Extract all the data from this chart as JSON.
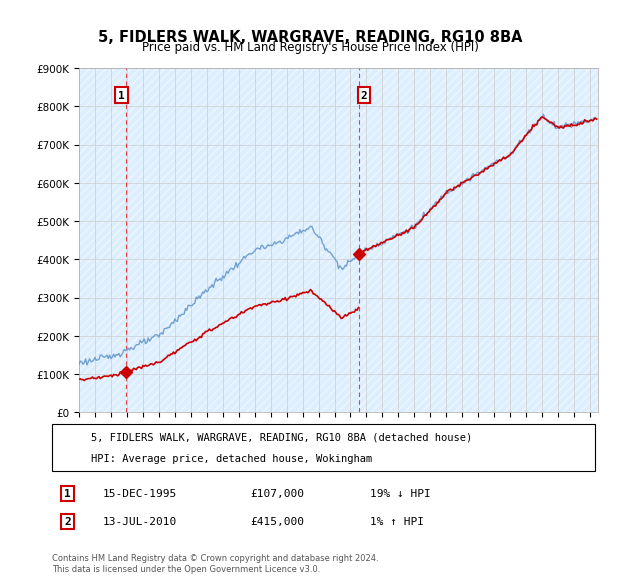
{
  "title": "5, FIDLERS WALK, WARGRAVE, READING, RG10 8BA",
  "subtitle": "Price paid vs. HM Land Registry's House Price Index (HPI)",
  "legend_line1": "5, FIDLERS WALK, WARGRAVE, READING, RG10 8BA (detached house)",
  "legend_line2": "HPI: Average price, detached house, Wokingham",
  "annotation1_date": "15-DEC-1995",
  "annotation1_price": "£107,000",
  "annotation1_hpi": "19% ↓ HPI",
  "annotation2_date": "13-JUL-2010",
  "annotation2_price": "£415,000",
  "annotation2_hpi": "1% ↑ HPI",
  "footer": "Contains HM Land Registry data © Crown copyright and database right 2024.\nThis data is licensed under the Open Government Licence v3.0.",
  "sale1_year": 1995.958,
  "sale1_price": 107000,
  "sale2_year": 2010.542,
  "sale2_price": 415000,
  "hpi_color": "#6699cc",
  "price_color": "#cc0000",
  "ylim_min": 0,
  "ylim_max": 900000,
  "xlim_min": 1993,
  "xlim_max": 2025.5,
  "grid_color": "#cccccc",
  "bg_color": "#ddeeff"
}
